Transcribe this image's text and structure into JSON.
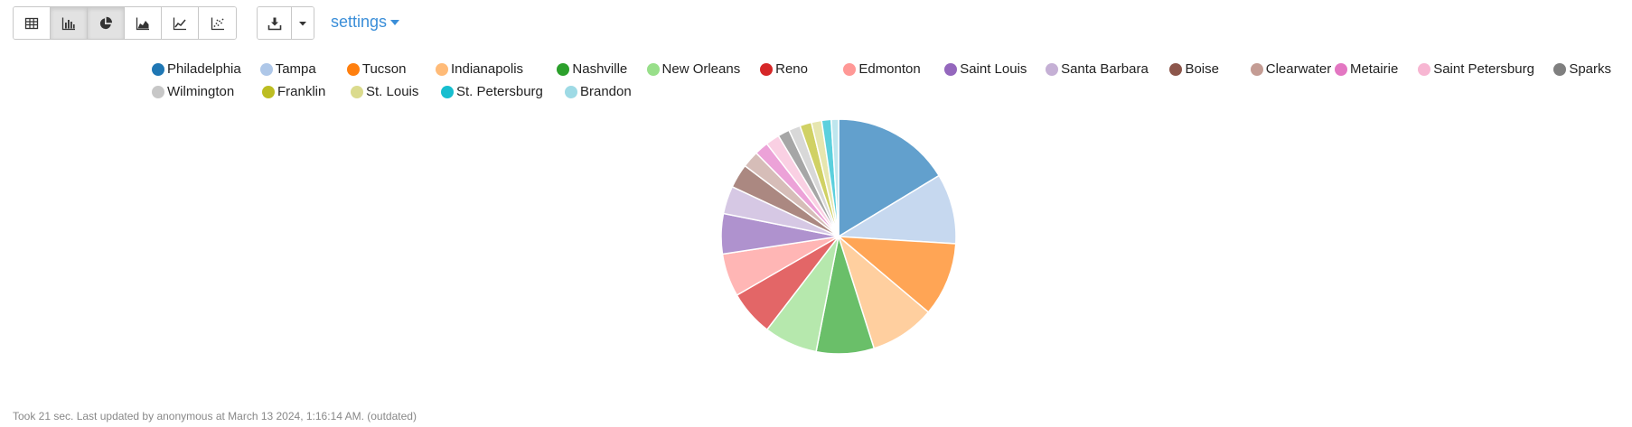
{
  "toolbar": {
    "view_buttons": [
      {
        "name": "table-view",
        "icon": "table-icon",
        "active": false
      },
      {
        "name": "bar-view",
        "icon": "bar-chart-icon",
        "active": true
      },
      {
        "name": "pie-view",
        "icon": "pie-chart-icon",
        "active": true
      },
      {
        "name": "area-view",
        "icon": "area-chart-icon",
        "active": false
      },
      {
        "name": "line-view",
        "icon": "line-chart-icon",
        "active": false
      },
      {
        "name": "scatter-view",
        "icon": "scatter-chart-icon",
        "active": false
      }
    ],
    "download_icon": "download-icon",
    "dropdown_icon": "caret-down-icon",
    "settings_label": "settings"
  },
  "footer": {
    "status_text": "Took 21 sec. Last updated by anonymous at March 13 2024, 1:16:14 AM. (outdated)"
  },
  "colors": {
    "accent": "#3a8ed8",
    "slice_border": "#ffffff"
  },
  "chart_data": {
    "type": "pie",
    "legend_position": "top",
    "categories": [
      "Philadelphia",
      "Tampa",
      "Tucson",
      "Indianapolis",
      "Nashville",
      "New Orleans",
      "Reno",
      "Edmonton",
      "Saint Louis",
      "Santa Barbara",
      "Boise",
      "Clearwater",
      "Metairie",
      "Saint Petersburg",
      "Sparks",
      "Wilmington",
      "Franklin",
      "St. Louis",
      "St. Petersburg",
      "Brandon"
    ],
    "values": [
      16.2,
      9.6,
      10.1,
      8.9,
      7.9,
      7.3,
      6.2,
      5.9,
      5.5,
      3.8,
      3.3,
      2.3,
      1.9,
      1.9,
      1.6,
      1.6,
      1.6,
      1.4,
      1.3,
      1.0
    ],
    "legend_colors": [
      "#1f77b4",
      "#aec7e8",
      "#ff7f0e",
      "#ffbb78",
      "#2ca02c",
      "#98df8a",
      "#d62728",
      "#ff9896",
      "#9467bd",
      "#c5b0d5",
      "#8c564b",
      "#c49c94",
      "#e377c2",
      "#f7b6d2",
      "#7f7f7f",
      "#c7c7c7",
      "#bcbd22",
      "#dbdb8d",
      "#17becf",
      "#9edae5"
    ],
    "slice_colors": [
      "#62a0cd",
      "#c6d8ef",
      "#ffa555",
      "#ffcf9f",
      "#6abf69",
      "#b6e8ad",
      "#e36667",
      "#ffb6b5",
      "#af92ce",
      "#d6c8e4",
      "#ab8881",
      "#d6bdb8",
      "#eca2d8",
      "#fad0e3",
      "#a6a6a6",
      "#d8d8d8",
      "#d0d164",
      "#e6e6af",
      "#5cd0dd",
      "#bee6ee"
    ]
  }
}
